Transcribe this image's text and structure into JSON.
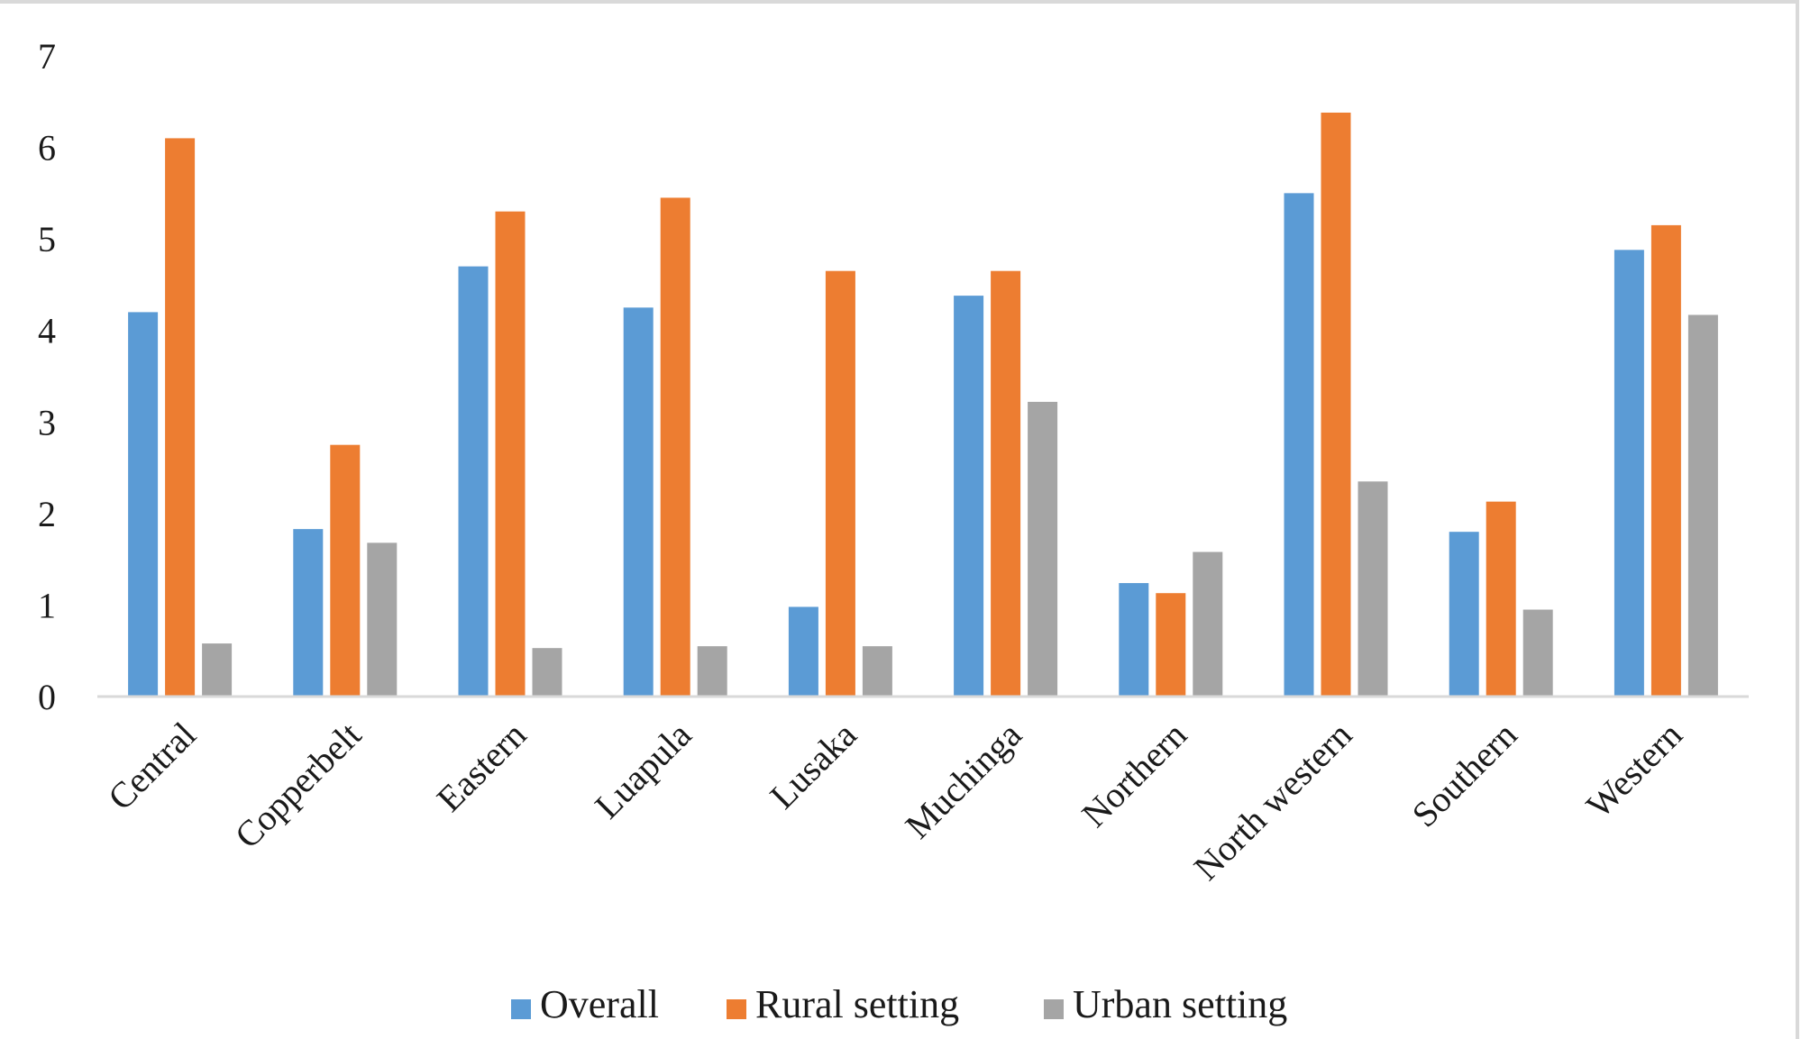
{
  "chart_data": {
    "type": "bar",
    "title": "",
    "xlabel": "",
    "ylabel": "",
    "ylim": [
      0,
      7
    ],
    "yticks": [
      0,
      1,
      2,
      3,
      4,
      5,
      6,
      7
    ],
    "categories": [
      "Central",
      "Copperbelt",
      "Eastern",
      "Luapula",
      "Lusaka",
      "Muchinga",
      "Northern",
      "North western",
      "Southern",
      "Western"
    ],
    "series": [
      {
        "name": "Overall",
        "color": "#5b9bd5",
        "values": [
          4.2,
          1.83,
          4.7,
          4.25,
          0.98,
          4.38,
          1.24,
          5.5,
          1.8,
          4.88
        ]
      },
      {
        "name": "Rural setting",
        "color": "#ed7d31",
        "values": [
          6.1,
          2.75,
          5.3,
          5.45,
          4.65,
          4.65,
          1.13,
          6.38,
          2.13,
          5.15
        ]
      },
      {
        "name": "Urban setting",
        "color": "#a5a5a5",
        "values": [
          0.58,
          1.68,
          0.53,
          0.55,
          0.55,
          3.22,
          1.58,
          2.35,
          0.95,
          4.17
        ]
      }
    ],
    "legend_position": "bottom",
    "grid": false
  }
}
